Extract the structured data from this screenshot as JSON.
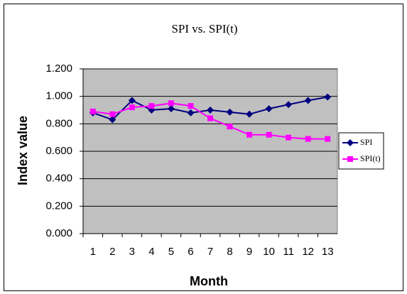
{
  "chart_data": {
    "type": "line",
    "title": "SPI vs. SPI(t)",
    "x_label": "Month",
    "y_label": "Index value",
    "categories": [
      "1",
      "2",
      "3",
      "4",
      "5",
      "6",
      "7",
      "8",
      "9",
      "10",
      "11",
      "12",
      "13"
    ],
    "series": [
      {
        "name": "SPI",
        "color": "#000080",
        "marker": "diamond",
        "values": [
          0.88,
          0.83,
          0.97,
          0.9,
          0.91,
          0.88,
          0.9,
          0.885,
          0.87,
          0.91,
          0.94,
          0.97,
          0.995
        ]
      },
      {
        "name": "SPI(t)",
        "color": "#ff00ff",
        "marker": "square",
        "values": [
          0.89,
          0.87,
          0.92,
          0.93,
          0.95,
          0.93,
          0.84,
          0.78,
          0.72,
          0.72,
          0.7,
          0.69,
          0.69
        ]
      }
    ],
    "ylim": [
      0,
      1.2
    ],
    "yticks": [
      {
        "value": 0,
        "label": "0.000"
      },
      {
        "value": 0.2,
        "label": "0.200"
      },
      {
        "value": 0.4,
        "label": "0.400"
      },
      {
        "value": 0.6,
        "label": "0.600"
      },
      {
        "value": 0.8,
        "label": "0.800"
      },
      {
        "value": 1.0,
        "label": "1.000"
      },
      {
        "value": 1.2,
        "label": "1.200"
      }
    ],
    "grid": true,
    "legend": "right",
    "plot_background": "#c0c0c0"
  }
}
